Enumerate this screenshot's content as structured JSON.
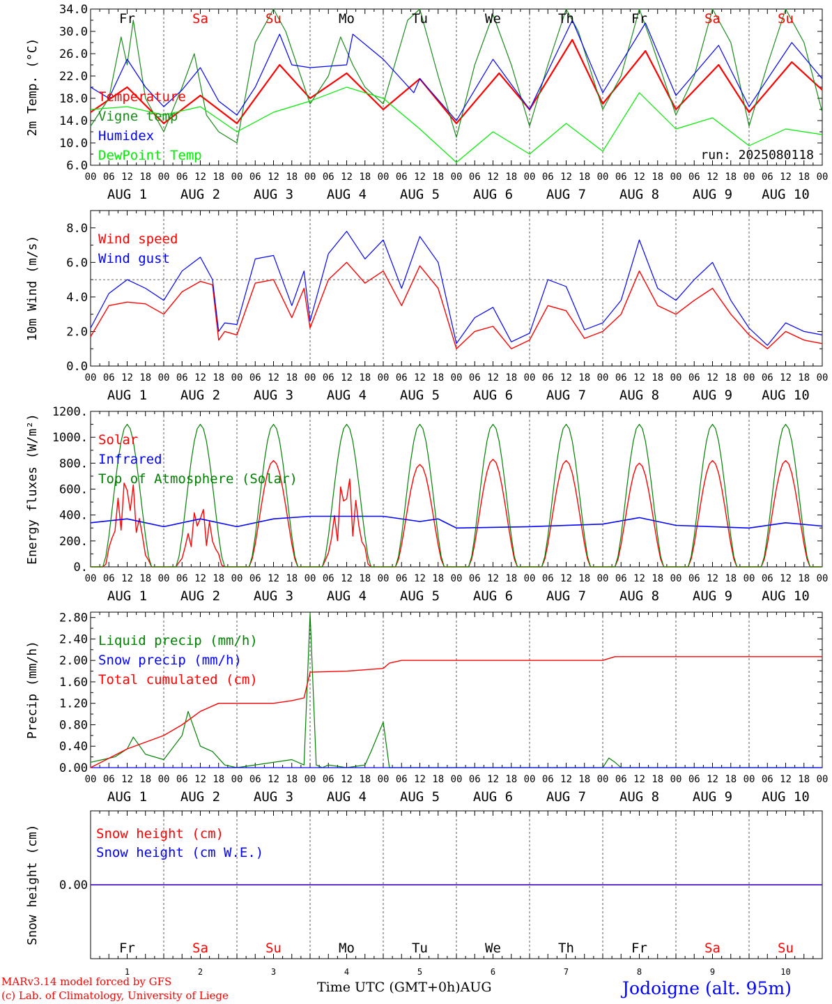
{
  "run_label": "run: 2025080118",
  "days": {
    "weekdays": [
      "Fr",
      "Sa",
      "Su",
      "Mo",
      "Tu",
      "We",
      "Th",
      "Fr",
      "Sa",
      "Su"
    ],
    "weekday_colors": [
      "#000000",
      "#ff0000",
      "#ff0000",
      "#000000",
      "#000000",
      "#000000",
      "#000000",
      "#000000",
      "#ff0000",
      "#ff0000"
    ],
    "date_labels": [
      "AUG  1",
      "AUG  2",
      "AUG  3",
      "AUG  4",
      "AUG  5",
      "AUG  6",
      "AUG  7",
      "AUG  8",
      "AUG  9",
      "AUG 10"
    ],
    "day_numbers": [
      "1",
      "2",
      "3",
      "4",
      "5",
      "6",
      "7",
      "8",
      "9",
      "10"
    ],
    "hour_ticks": [
      "00",
      "06",
      "12",
      "18"
    ],
    "last_tick": "00"
  },
  "colors": {
    "red": "#ff0000",
    "blue": "#0000ff",
    "green": "#008000",
    "light_green": "#00ee00",
    "dark_green": "#1a8a1a"
  },
  "footer": {
    "model_line": "MARv3.14 model forced by GFS",
    "lab_line": "(c) Lab. of Climatology, University of Liege",
    "time_axis_label": "Time UTC (GMT+0h)AUG",
    "location": "Jodoigne (alt. 95m)"
  },
  "chart_data": [
    {
      "type": "line",
      "ylabel": "2m Temp. (°C)",
      "ylim": [
        6,
        34
      ],
      "yticks": [
        "6.0",
        "10.0",
        "14.0",
        "18.0",
        "22.0",
        "26.0",
        "30.0",
        "34.0"
      ],
      "ytick_values": [
        6,
        10,
        14,
        18,
        22,
        26,
        30,
        34
      ],
      "grid": "vertical dashed at day boundaries",
      "legend_placement": "left",
      "series": [
        {
          "name": "Temperature",
          "color": "#ff0000",
          "width": 2.2,
          "x_hours": [
            0,
            12,
            24,
            36,
            48,
            62,
            72,
            84,
            96,
            108,
            120,
            134,
            144,
            158,
            168,
            182,
            192,
            206,
            216,
            230,
            240
          ],
          "y": [
            15.5,
            20.0,
            13.5,
            18.5,
            13.5,
            24.0,
            18.0,
            22.5,
            16.0,
            21.5,
            13.5,
            22.5,
            16.0,
            28.5,
            17.0,
            26.5,
            16.0,
            24.0,
            15.5,
            24.5,
            19.5
          ]
        },
        {
          "name": "Vigne temp",
          "color": "#1a8a1a",
          "width": 1.2,
          "x_hours": [
            0,
            6,
            10,
            12,
            14,
            18,
            24,
            30,
            34,
            38,
            42,
            48,
            54,
            60,
            64,
            72,
            78,
            82,
            86,
            90,
            96,
            104,
            108,
            114,
            120,
            126,
            132,
            138,
            144,
            150,
            156,
            160,
            168,
            174,
            180,
            184,
            192,
            198,
            204,
            210,
            216,
            222,
            228,
            234,
            240
          ],
          "y": [
            13.0,
            18.0,
            29.0,
            24.0,
            32.0,
            18.0,
            12.0,
            20.0,
            26.0,
            15.0,
            12.0,
            10.0,
            28.0,
            40.0,
            30.0,
            17.0,
            22.0,
            29.0,
            24.0,
            20.0,
            17.0,
            32.0,
            34.0,
            22.0,
            11.0,
            24.0,
            33.0,
            24.0,
            13.0,
            24.0,
            34.0,
            30.0,
            16.0,
            22.0,
            34.0,
            28.0,
            15.0,
            22.0,
            34.0,
            28.0,
            13.0,
            24.0,
            34.0,
            28.0,
            15.5
          ]
        },
        {
          "name": "Humidex",
          "color": "#0000ff",
          "width": 1.2,
          "x_hours": [
            0,
            6,
            12,
            18,
            24,
            30,
            36,
            42,
            48,
            54,
            62,
            66,
            72,
            84,
            86,
            96,
            106,
            108,
            120,
            132,
            144,
            158,
            168,
            182,
            192,
            206,
            216,
            230,
            240
          ],
          "y": [
            20.0,
            18.0,
            25.0,
            20.0,
            16.5,
            19.5,
            23.5,
            17.5,
            15.0,
            20.0,
            29.5,
            24.0,
            23.5,
            24.0,
            29.5,
            25.0,
            19.0,
            21.5,
            14.0,
            25.0,
            16.0,
            32.0,
            19.0,
            31.5,
            18.5,
            27.5,
            16.5,
            28.0,
            21.5
          ]
        },
        {
          "name": "DewPoint Temp",
          "color": "#00ee00",
          "width": 1.2,
          "x_hours": [
            0,
            12,
            24,
            36,
            48,
            60,
            72,
            84,
            96,
            108,
            120,
            132,
            144,
            156,
            168,
            180,
            192,
            204,
            216,
            228,
            240
          ],
          "y": [
            16.0,
            16.5,
            15.0,
            16.5,
            12.0,
            15.5,
            17.5,
            20.0,
            18.0,
            12.5,
            6.5,
            12.0,
            8.0,
            13.5,
            8.5,
            19.0,
            12.5,
            14.5,
            9.5,
            12.5,
            11.5
          ]
        }
      ]
    },
    {
      "type": "line",
      "ylabel": "10m Wind (m/s)",
      "ylim": [
        0,
        9
      ],
      "yticks": [
        "0.0",
        "2.0",
        "4.0",
        "6.0",
        "8.0"
      ],
      "ytick_values": [
        0,
        2,
        4,
        6,
        8
      ],
      "reference_line": 5.0,
      "legend_placement": "top-left",
      "series": [
        {
          "name": "Wind speed",
          "color": "#ff0000",
          "width": 1.4,
          "x_hours": [
            0,
            6,
            12,
            18,
            24,
            30,
            36,
            40,
            42,
            44,
            48,
            54,
            60,
            66,
            70,
            72,
            78,
            84,
            90,
            96,
            102,
            108,
            114,
            120,
            126,
            132,
            138,
            144,
            150,
            156,
            162,
            168,
            174,
            180,
            186,
            192,
            198,
            204,
            210,
            216,
            222,
            228,
            234,
            240
          ],
          "y": [
            1.7,
            3.5,
            3.7,
            3.6,
            3.0,
            4.3,
            4.9,
            4.7,
            1.5,
            2.0,
            1.8,
            4.8,
            5.0,
            2.8,
            4.5,
            2.2,
            5.0,
            6.0,
            4.8,
            5.5,
            3.5,
            5.8,
            4.5,
            1.0,
            2.0,
            2.3,
            1.0,
            1.5,
            3.5,
            3.2,
            1.6,
            2.0,
            3.0,
            5.5,
            3.5,
            3.0,
            3.8,
            4.5,
            3.0,
            1.8,
            1.0,
            2.0,
            1.5,
            1.3
          ]
        },
        {
          "name": "Wind gust",
          "color": "#0000ff",
          "width": 1.2,
          "x_hours": [
            0,
            6,
            12,
            18,
            24,
            30,
            36,
            40,
            42,
            44,
            48,
            54,
            60,
            66,
            70,
            72,
            78,
            84,
            90,
            96,
            102,
            108,
            114,
            120,
            126,
            132,
            138,
            144,
            150,
            156,
            162,
            168,
            174,
            180,
            186,
            192,
            198,
            204,
            210,
            216,
            222,
            228,
            234,
            240
          ],
          "y": [
            2.2,
            4.2,
            5.0,
            4.5,
            3.8,
            5.5,
            6.3,
            5.0,
            2.0,
            2.5,
            2.4,
            6.2,
            6.4,
            3.5,
            5.5,
            2.6,
            6.5,
            7.8,
            6.2,
            7.3,
            4.5,
            7.5,
            6.0,
            1.3,
            2.8,
            3.4,
            1.4,
            1.9,
            5.0,
            4.6,
            2.1,
            2.5,
            3.8,
            7.3,
            4.5,
            3.8,
            5.0,
            6.0,
            3.8,
            2.2,
            1.2,
            2.5,
            2.0,
            1.8
          ]
        }
      ]
    },
    {
      "type": "line",
      "ylabel": "Energy fluxes (W/m²)",
      "ylim": [
        0,
        1200
      ],
      "yticks": [
        "0.",
        "200.",
        "400.",
        "600.",
        "800.",
        "1000.",
        "1200."
      ],
      "ytick_values": [
        0,
        200,
        400,
        600,
        800,
        1000,
        1200
      ],
      "legend_placement": "top-left",
      "series": [
        {
          "name": "Solar",
          "color": "#ff0000",
          "width": 1.4,
          "daily_peaks": [
            720,
            480,
            820,
            720,
            790,
            830,
            820,
            800,
            820,
            820
          ],
          "cloudy_days": [
            0,
            1,
            3
          ]
        },
        {
          "name": "Infrared",
          "color": "#0000ff",
          "width": 1.6,
          "x_hours": [
            0,
            12,
            24,
            36,
            48,
            60,
            72,
            84,
            96,
            108,
            114,
            120,
            144,
            168,
            180,
            192,
            216,
            228,
            240
          ],
          "y": [
            340,
            370,
            310,
            370,
            310,
            370,
            390,
            390,
            390,
            350,
            370,
            300,
            310,
            330,
            380,
            320,
            300,
            340,
            315
          ]
        },
        {
          "name": "Top of Atmosphere (Solar)",
          "color": "#008000",
          "width": 1.2,
          "daily_peak": 1100
        }
      ]
    },
    {
      "type": "line",
      "ylabel": "Precip (mm/h)",
      "ylim": [
        0,
        2.9
      ],
      "yticks": [
        "0.00",
        "0.40",
        "0.80",
        "1.20",
        "1.60",
        "2.00",
        "2.40",
        "2.80"
      ],
      "ytick_values": [
        0,
        0.4,
        0.8,
        1.2,
        1.6,
        2.0,
        2.4,
        2.8
      ],
      "legend_placement": "top-left",
      "series": [
        {
          "name": "Liquid precip (mm/h)",
          "color": "#008000",
          "width": 1.2,
          "x_hours": [
            0,
            4,
            8,
            12,
            14,
            18,
            24,
            30,
            32,
            36,
            40,
            44,
            48,
            66,
            70,
            72,
            74,
            76,
            78,
            84,
            90,
            92,
            96,
            98,
            100,
            102,
            168,
            170,
            172,
            174,
            240
          ],
          "y": [
            0.1,
            0.15,
            0.2,
            0.35,
            0.57,
            0.25,
            0.15,
            0.6,
            1.05,
            0.4,
            0.3,
            0.05,
            0.0,
            0.15,
            0.05,
            2.88,
            0.05,
            0.0,
            0.05,
            0.0,
            0.05,
            0.3,
            0.85,
            0.0,
            0.0,
            0.0,
            0.0,
            0.18,
            0.1,
            0.0,
            0.0
          ]
        },
        {
          "name": "Snow precip (mm/h)",
          "color": "#0000ff",
          "width": 1.2,
          "x_hours": [
            0,
            240
          ],
          "y": [
            0,
            0
          ]
        },
        {
          "name": "Total cumulated (cm)",
          "color": "#ff0000",
          "width": 1.4,
          "x_hours": [
            0,
            12,
            24,
            30,
            36,
            42,
            48,
            60,
            66,
            70,
            72,
            84,
            96,
            98,
            102,
            168,
            172,
            240
          ],
          "y": [
            0.0,
            0.35,
            0.6,
            0.8,
            1.05,
            1.2,
            1.2,
            1.2,
            1.25,
            1.3,
            1.78,
            1.8,
            1.85,
            1.95,
            2.0,
            2.0,
            2.07,
            2.07
          ]
        }
      ]
    },
    {
      "type": "line",
      "ylabel": "Snow height (cm)",
      "ylim": [
        -1,
        1
      ],
      "yticks": [
        "0.00"
      ],
      "ytick_values": [
        0
      ],
      "legend_placement": "top-left",
      "series": [
        {
          "name": "Snow height (cm)",
          "color": "#ff0000",
          "width": 1.4,
          "x_hours": [
            0,
            240
          ],
          "y": [
            0,
            0
          ]
        },
        {
          "name": "Snow height (cm W.E.)",
          "color": "#0000ff",
          "width": 1.2,
          "x_hours": [
            0,
            240
          ],
          "y": [
            0,
            0
          ]
        }
      ]
    }
  ]
}
